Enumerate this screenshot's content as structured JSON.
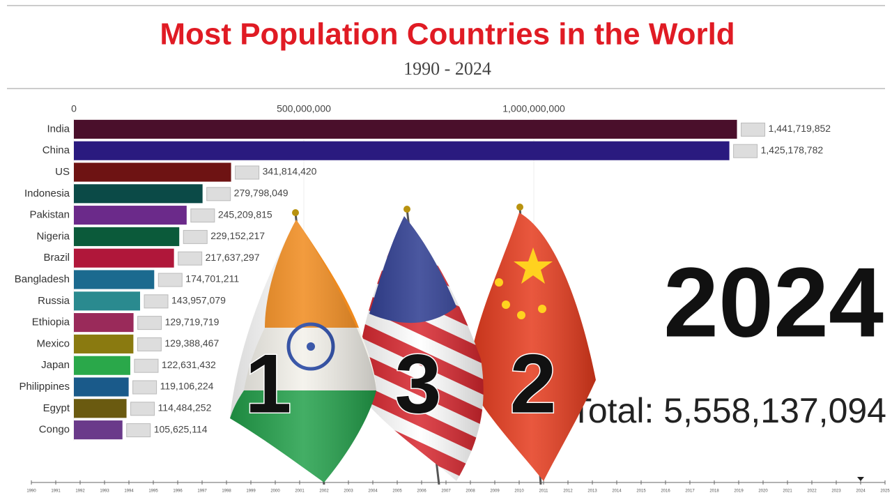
{
  "chart_data": {
    "type": "bar",
    "title": "Most Population Countries in the World",
    "subtitle": "1990 - 2024",
    "categories": [
      "India",
      "China",
      "US",
      "Indonesia",
      "Pakistan",
      "Nigeria",
      "Brazil",
      "Bangladesh",
      "Russia",
      "Ethiopia",
      "Mexico",
      "Japan",
      "Philippines",
      "Egypt",
      "Congo"
    ],
    "values": [
      1441719852,
      1425178782,
      341814420,
      279798049,
      245209815,
      229152217,
      217637297,
      174701211,
      143957079,
      129719719,
      129388467,
      122631432,
      119106224,
      114484252,
      105625114
    ],
    "value_labels": [
      "1,441,719,852",
      "1,425,178,782",
      "341,814,420",
      "279,798,049",
      "245,209,815",
      "229,152,217",
      "217,637,297",
      "174,701,211",
      "143,957,079",
      "129,719,719",
      "129,388,467",
      "122,631,432",
      "119,106,224",
      "114,484,252",
      "105,625,114"
    ],
    "colors": [
      "#4a0f2b",
      "#2a1a7f",
      "#6e1313",
      "#0b4a47",
      "#6b2a8a",
      "#0b5a3a",
      "#b0173a",
      "#1b6a8f",
      "#2a8a8f",
      "#9a2a5a",
      "#8a7a10",
      "#2aa84a",
      "#1a5a8a",
      "#6a5a10",
      "#6a3a8a"
    ],
    "xlim": [
      0,
      1750000000
    ],
    "xticks": [
      0,
      {
        "value": 500000000,
        "label": "500,000,000"
      },
      {
        "value": 1000000000,
        "label": "1,000,000,000"
      }
    ],
    "grid": true,
    "year": "2024",
    "total": "Total: 5,558,137,094",
    "timeline": {
      "years": [
        1990,
        1991,
        1992,
        1993,
        1994,
        1995,
        1996,
        1997,
        1998,
        1999,
        2000,
        2001,
        2002,
        2003,
        2004,
        2005,
        2006,
        2007,
        2008,
        2009,
        2010,
        2011,
        2012,
        2013,
        2014,
        2015,
        2016,
        2017,
        2018,
        2019,
        2020,
        2021,
        2022,
        2023,
        2024,
        2025
      ],
      "current": 2024
    },
    "overlay_ranks": [
      "1",
      "3",
      "2"
    ]
  }
}
